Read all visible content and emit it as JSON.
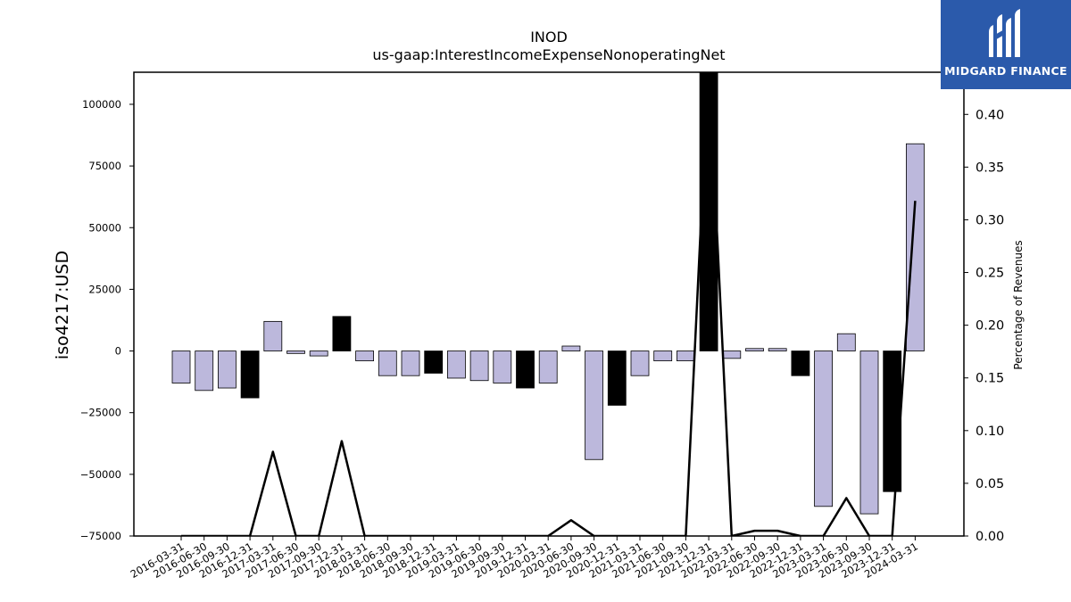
{
  "brand": {
    "name": "MIDGARD FINANCE",
    "color": "#2b5aab"
  },
  "chart_data": {
    "type": "bar",
    "title": "INOD",
    "subtitle": "us-gaap:InterestIncomeExpenseNonoperatingNet",
    "ylabel": "iso4217:USD",
    "ylabel_right": "Percentage of Revenues",
    "ylim": [
      -75000,
      113000
    ],
    "ylim_right": [
      0.0,
      0.44
    ],
    "yticks": [
      -75000,
      -50000,
      -25000,
      0,
      25000,
      50000,
      75000,
      100000
    ],
    "yticks_right": [
      0.0,
      0.05,
      0.1,
      0.15,
      0.2,
      0.25,
      0.3,
      0.35,
      0.4
    ],
    "yticks_right_labels": [
      "0.00",
      "0.05",
      "0.10",
      "0.15",
      "0.20",
      "0.25",
      "0.30",
      "0.35",
      "0.40"
    ],
    "grid": false,
    "colors": {
      "quarter": "#bcb8dc",
      "year_end": "#000000",
      "line": "#000000"
    },
    "categories": [
      "2016-03-31",
      "2016-06-30",
      "2016-09-30",
      "2016-12-31",
      "2017-03-31",
      "2017-06-30",
      "2017-09-30",
      "2017-12-31",
      "2018-03-31",
      "2018-06-30",
      "2018-09-30",
      "2018-12-31",
      "2019-03-31",
      "2019-06-30",
      "2019-09-30",
      "2019-12-31",
      "2020-03-31",
      "2020-06-30",
      "2020-09-30",
      "2020-12-31",
      "2021-03-31",
      "2021-06-30",
      "2021-09-30",
      "2021-12-31",
      "2022-03-31",
      "2022-06-30",
      "2022-09-30",
      "2022-12-31",
      "2023-03-31",
      "2023-06-30",
      "2023-09-30",
      "2023-12-31",
      "2024-03-31"
    ],
    "series": [
      {
        "type": "bar",
        "values": [
          -13000,
          -16000,
          -15000,
          -19000,
          12000,
          -1000,
          -2000,
          14000,
          -4000,
          -10000,
          -10000,
          -9000,
          -11000,
          -12000,
          -13000,
          -15000,
          -13000,
          2000,
          -44000,
          -22000,
          -10000,
          -4000,
          -4000,
          113000,
          -3000,
          1000,
          1000,
          -10000,
          -63000,
          7000,
          -66000,
          -57000,
          84000
        ]
      },
      {
        "type": "line",
        "axis": "right",
        "values": [
          0,
          0,
          0,
          0,
          0.08,
          0,
          0,
          0.09,
          0,
          0,
          0,
          0,
          0,
          0,
          0,
          0,
          0,
          0.015,
          0,
          0,
          0,
          0,
          0,
          0.45,
          0,
          0.005,
          0.005,
          0,
          0,
          0.036,
          0,
          0,
          0.318
        ]
      }
    ]
  }
}
